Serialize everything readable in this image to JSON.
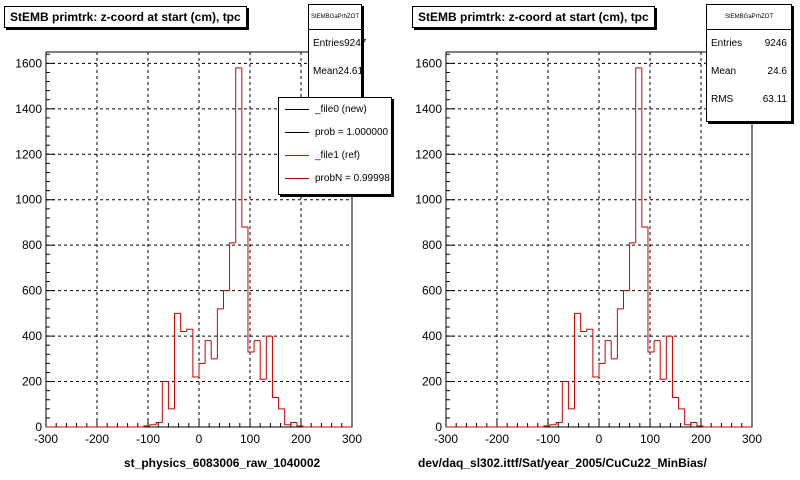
{
  "colors": {
    "new": "#000000",
    "ref": "#cc0000"
  },
  "corner_text": "",
  "chart_data": [
    {
      "type": "bar",
      "title": "StEMB primtrk: z-coord at start (cm), tpc",
      "xlabel": "st_physics_6083006_raw_1040002",
      "ylabel": "",
      "xlim": [
        -300,
        300
      ],
      "ylim": [
        0,
        1650
      ],
      "x_ticks": [
        -300,
        -200,
        -100,
        0,
        100,
        200,
        300
      ],
      "y_ticks": [
        0,
        200,
        400,
        600,
        800,
        1000,
        1200,
        1400,
        1600
      ],
      "grid": true,
      "bin_edges_start": -300,
      "bin_width": 12,
      "values": [
        0,
        0,
        0,
        0,
        0,
        0,
        0,
        0,
        0,
        0,
        0,
        0,
        0,
        0,
        0,
        0,
        5,
        10,
        20,
        200,
        80,
        500,
        420,
        430,
        220,
        280,
        380,
        300,
        520,
        600,
        810,
        1580,
        880,
        330,
        380,
        210,
        400,
        130,
        80,
        10,
        20,
        5,
        0,
        0,
        0,
        0,
        0,
        0,
        0,
        0
      ],
      "stats": {
        "name": "StEMBGaPrhZOT",
        "entries_label": "Entries",
        "entries": "9247",
        "mean_label": "Mean",
        "mean": "24.61"
      },
      "legend": [
        {
          "label": "_file0 (new)",
          "color": "#000000"
        },
        {
          "label": "prob = 1.000000",
          "color": "#000000"
        },
        {
          "label": "_file1 (ref)",
          "color": "#cc0000"
        },
        {
          "label": "probN = 0.99998",
          "color": "#cc0000"
        }
      ]
    },
    {
      "type": "bar",
      "title": "StEMB primtrk: z-coord at start (cm), tpc",
      "xlabel": "dev/daq_sl302.ittf/Sat/year_2005/CuCu22_MinBias/",
      "ylabel": "",
      "xlim": [
        -300,
        300
      ],
      "ylim": [
        0,
        1650
      ],
      "x_ticks": [
        -300,
        -200,
        -100,
        0,
        100,
        200,
        300
      ],
      "y_ticks": [
        0,
        200,
        400,
        600,
        800,
        1000,
        1200,
        1400,
        1600
      ],
      "grid": true,
      "bin_edges_start": -300,
      "bin_width": 12,
      "values": [
        0,
        0,
        0,
        0,
        0,
        0,
        0,
        0,
        0,
        0,
        0,
        0,
        0,
        0,
        0,
        0,
        5,
        10,
        20,
        200,
        80,
        500,
        420,
        430,
        220,
        280,
        380,
        300,
        520,
        600,
        810,
        1580,
        880,
        330,
        380,
        210,
        400,
        130,
        80,
        10,
        20,
        5,
        0,
        0,
        0,
        0,
        0,
        0,
        0,
        0
      ],
      "stats": {
        "name": "StEMBGaPrhZOT",
        "entries_label": "Entries",
        "entries": "9246",
        "mean_label": "Mean",
        "mean": "24.6",
        "rms_label": "RMS",
        "rms": "63.11"
      }
    }
  ]
}
